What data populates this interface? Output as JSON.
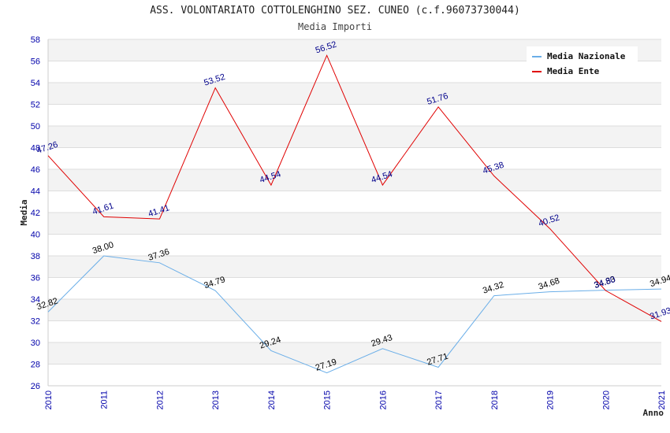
{
  "chart_data": {
    "type": "line",
    "title": "ASS. VOLONTARIATO COTTOLENGHINO SEZ. CUNEO (c.f.96073730044)",
    "subtitle": "Media Importi",
    "xlabel": "Anno",
    "ylabel": "Media",
    "x": [
      "2010",
      "2011",
      "2012",
      "2013",
      "2014",
      "2015",
      "2016",
      "2017",
      "2018",
      "2019",
      "2020",
      "2021"
    ],
    "ylim": [
      26,
      58
    ],
    "yticks": [
      26,
      28,
      30,
      32,
      34,
      36,
      38,
      40,
      42,
      44,
      46,
      48,
      50,
      52,
      54,
      56,
      58
    ],
    "grid": "horizontal-bands",
    "legend_position": "top-right",
    "series": [
      {
        "name": "Media Nazionale",
        "color": "#6aaee8",
        "label_color": "#000000",
        "values": [
          32.82,
          38.0,
          37.36,
          34.79,
          29.24,
          27.19,
          29.43,
          27.71,
          34.32,
          34.68,
          34.83,
          34.94
        ],
        "labels": [
          "32.82",
          "38.00",
          "37.36",
          "34.79",
          "29.24",
          "27.19",
          "29.43",
          "27.71",
          "34.32",
          "34.68",
          "34.83",
          "34.94"
        ]
      },
      {
        "name": "Media Ente",
        "color": "#e00000",
        "label_color": "#00008b",
        "values": [
          47.26,
          41.61,
          41.41,
          53.52,
          44.54,
          56.52,
          44.54,
          51.76,
          45.38,
          40.52,
          34.8,
          31.93
        ],
        "labels": [
          "47.26",
          "41.61",
          "41.41",
          "53.52",
          "44.54",
          "56.52",
          "44.54",
          "51.76",
          "45.38",
          "40.52",
          "34.80",
          "31.93"
        ]
      }
    ]
  }
}
